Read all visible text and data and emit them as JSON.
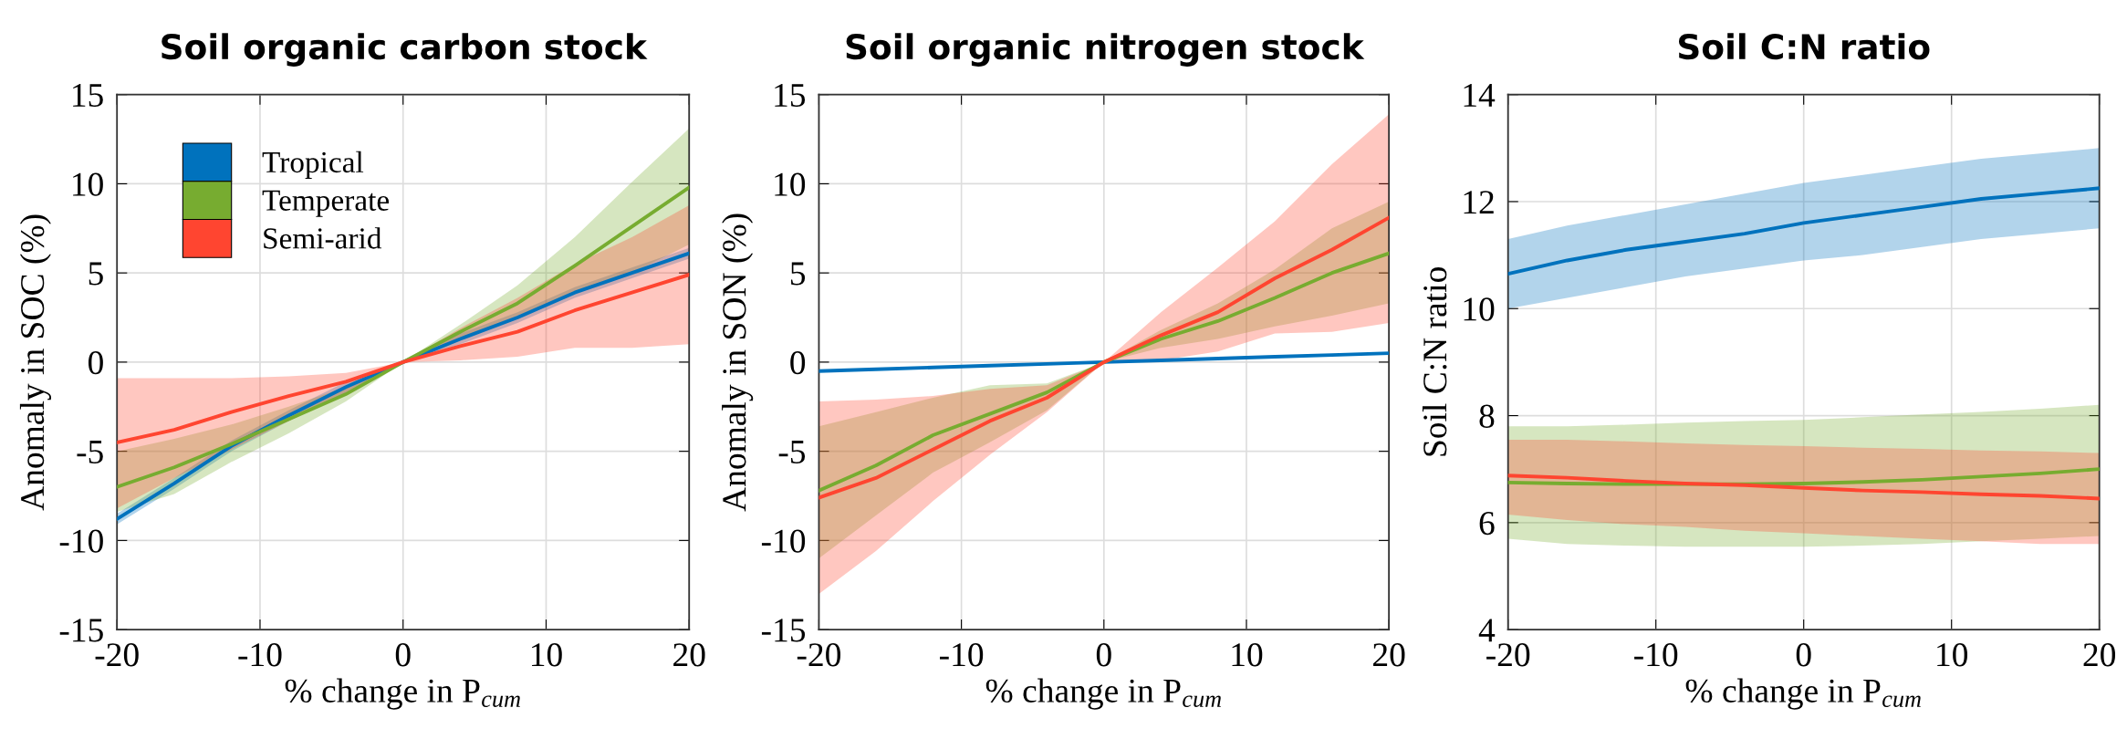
{
  "chart_data": [
    {
      "type": "line",
      "title": "Soil organic carbon stock",
      "xlabel": "% change in P$_{cum}$",
      "ylabel": "Anomaly in SOC (%)",
      "x": [
        -20,
        -16,
        -12,
        -8,
        -4,
        0,
        4,
        8,
        12,
        16,
        20
      ],
      "xlim": [
        -20,
        20
      ],
      "xticks": [
        -20,
        -10,
        0,
        10,
        20
      ],
      "ylim": [
        -15,
        15
      ],
      "yticks": [
        -15,
        -10,
        -5,
        0,
        5,
        10,
        15
      ],
      "grid": true,
      "legend": "top left",
      "series": [
        {
          "name": "Tropical",
          "color": "#0072bd",
          "values": [
            -8.8,
            -6.8,
            -4.7,
            -3.0,
            -1.4,
            0,
            1.3,
            2.5,
            3.9,
            5.0,
            6.1
          ],
          "lower": [
            -9.1,
            -7.1,
            -5.0,
            -3.3,
            -1.7,
            0,
            1.0,
            2.2,
            3.6,
            4.7,
            5.8
          ],
          "upper": [
            -8.5,
            -6.5,
            -4.4,
            -2.7,
            -1.1,
            0,
            1.6,
            2.8,
            4.2,
            5.3,
            6.4
          ]
        },
        {
          "name": "Temperate",
          "color": "#77ac30",
          "values": [
            -7.0,
            -5.9,
            -4.6,
            -3.2,
            -1.8,
            0,
            1.7,
            3.3,
            5.4,
            7.6,
            9.8
          ],
          "lower": [
            -8.4,
            -7.4,
            -5.6,
            -4.0,
            -2.2,
            0,
            1.3,
            2.6,
            3.9,
            5.0,
            6.6
          ],
          "upper": [
            -5.0,
            -4.3,
            -3.5,
            -2.5,
            -1.4,
            0,
            2.1,
            4.3,
            7.0,
            10.1,
            13.1
          ]
        },
        {
          "name": "Semi-arid",
          "color": "#ff4530",
          "values": [
            -4.5,
            -3.8,
            -2.8,
            -1.9,
            -1.1,
            0,
            0.9,
            1.7,
            2.9,
            3.9,
            4.9
          ],
          "lower": [
            -8.2,
            -6.5,
            -4.9,
            -3.3,
            -1.8,
            0,
            0.1,
            0.3,
            0.8,
            0.8,
            1.0
          ],
          "upper": [
            -0.9,
            -0.9,
            -0.9,
            -0.8,
            -0.6,
            0,
            1.9,
            3.6,
            5.5,
            7.0,
            8.8
          ]
        }
      ]
    },
    {
      "type": "line",
      "title": "Soil organic nitrogen stock",
      "xlabel": "% change in P$_{cum}$",
      "ylabel": "Anomaly in SON (%)",
      "x": [
        -20,
        -16,
        -12,
        -8,
        -4,
        0,
        4,
        8,
        12,
        16,
        20
      ],
      "xlim": [
        -20,
        20
      ],
      "xticks": [
        -20,
        -10,
        0,
        10,
        20
      ],
      "ylim": [
        -15,
        15
      ],
      "yticks": [
        -15,
        -10,
        -5,
        0,
        5,
        10,
        15
      ],
      "grid": true,
      "series": [
        {
          "color": "#0072bd",
          "values": [
            -0.5,
            -0.4,
            -0.3,
            -0.2,
            -0.1,
            0,
            0.1,
            0.2,
            0.3,
            0.4,
            0.5
          ]
        },
        {
          "color": "#77ac30",
          "values": [
            -7.2,
            -5.8,
            -4.1,
            -2.9,
            -1.7,
            0,
            1.3,
            2.3,
            3.6,
            5.0,
            6.1
          ],
          "lower": [
            -11.0,
            -8.6,
            -6.2,
            -4.5,
            -2.7,
            0,
            0.8,
            1.3,
            2.0,
            2.6,
            3.3
          ],
          "upper": [
            -3.6,
            -2.8,
            -2.0,
            -1.3,
            -1.2,
            0,
            1.8,
            3.3,
            5.2,
            7.5,
            9.0
          ]
        },
        {
          "color": "#ff4530",
          "values": [
            -7.6,
            -6.5,
            -4.9,
            -3.3,
            -2.0,
            0,
            1.5,
            2.8,
            4.7,
            6.3,
            8.1
          ],
          "lower": [
            -13.0,
            -10.6,
            -7.8,
            -5.2,
            -2.8,
            0,
            0.1,
            0.6,
            1.6,
            1.7,
            2.2
          ],
          "upper": [
            -2.2,
            -2.1,
            -1.9,
            -1.5,
            -1.3,
            0,
            2.8,
            5.3,
            7.9,
            11.1,
            13.9
          ]
        }
      ]
    },
    {
      "type": "line",
      "title": "Soil C:N ratio",
      "xlabel": "% change in P$_{cum}$",
      "ylabel": "Soil C:N ratio",
      "x": [
        -20,
        -16,
        -12,
        -8,
        -4,
        0,
        4,
        8,
        12,
        16,
        20
      ],
      "xlim": [
        -20,
        20
      ],
      "xticks": [
        -20,
        -10,
        0,
        10,
        20
      ],
      "ylim": [
        4,
        14
      ],
      "yticks": [
        4,
        6,
        8,
        10,
        12,
        14
      ],
      "grid": true,
      "series": [
        {
          "color": "#0072bd",
          "values": [
            10.65,
            10.9,
            11.1,
            11.25,
            11.4,
            11.6,
            11.75,
            11.9,
            12.05,
            12.15,
            12.25
          ],
          "lower": [
            10.0,
            10.2,
            10.4,
            10.6,
            10.75,
            10.9,
            11.0,
            11.15,
            11.3,
            11.4,
            11.5
          ],
          "upper": [
            11.3,
            11.55,
            11.75,
            11.95,
            12.15,
            12.35,
            12.5,
            12.65,
            12.8,
            12.9,
            13.0
          ]
        },
        {
          "color": "#77ac30",
          "values": [
            6.75,
            6.73,
            6.72,
            6.72,
            6.72,
            6.73,
            6.76,
            6.8,
            6.86,
            6.92,
            7.0
          ],
          "lower": [
            5.7,
            5.6,
            5.57,
            5.55,
            5.55,
            5.55,
            5.57,
            5.6,
            5.65,
            5.7,
            5.75
          ],
          "upper": [
            7.8,
            7.8,
            7.83,
            7.87,
            7.9,
            7.92,
            7.97,
            8.02,
            8.07,
            8.13,
            8.2
          ]
        },
        {
          "color": "#ff4530",
          "values": [
            6.88,
            6.84,
            6.78,
            6.73,
            6.7,
            6.65,
            6.6,
            6.57,
            6.53,
            6.5,
            6.45
          ],
          "lower": [
            6.15,
            6.05,
            5.97,
            5.92,
            5.85,
            5.8,
            5.75,
            5.7,
            5.65,
            5.6,
            5.6
          ],
          "upper": [
            7.55,
            7.55,
            7.52,
            7.48,
            7.45,
            7.43,
            7.4,
            7.38,
            7.35,
            7.33,
            7.3
          ]
        }
      ]
    }
  ]
}
